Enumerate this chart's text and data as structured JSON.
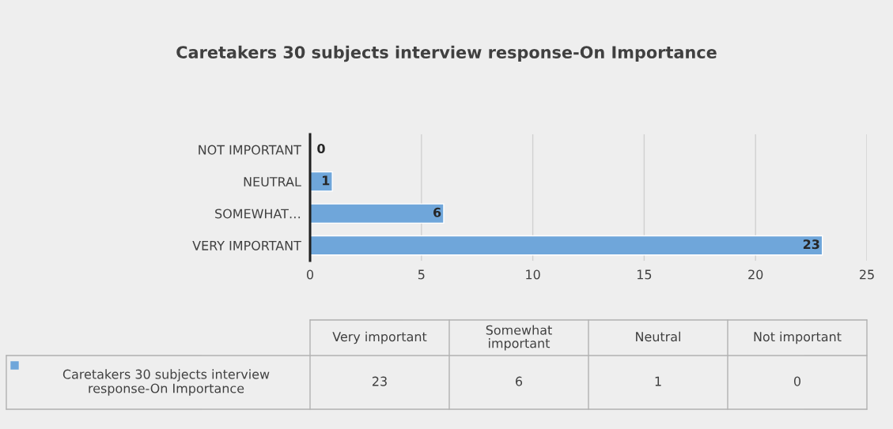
{
  "chart_data": {
    "type": "bar",
    "orientation": "horizontal",
    "title": "Caretakers 30 subjects interview response-On Importance",
    "categories": [
      "NOT IMPORTANT",
      "NEUTRAL",
      "SOMEWHAT…",
      "VERY IMPORTANT"
    ],
    "series": [
      {
        "name": "Caretakers 30 subjects interview response-On Importance",
        "color": "#6fa6da",
        "values": [
          0,
          1,
          6,
          23
        ]
      }
    ],
    "xlim": [
      0,
      25
    ],
    "xticks": [
      0,
      5,
      10,
      15,
      20,
      25
    ],
    "grid": "x",
    "data_labels": true,
    "legend": "bottom",
    "annotations": [
      "Very important",
      "Somewhat important",
      "Neutral",
      "Not important",
      "23",
      "6",
      "1",
      "0"
    ]
  }
}
